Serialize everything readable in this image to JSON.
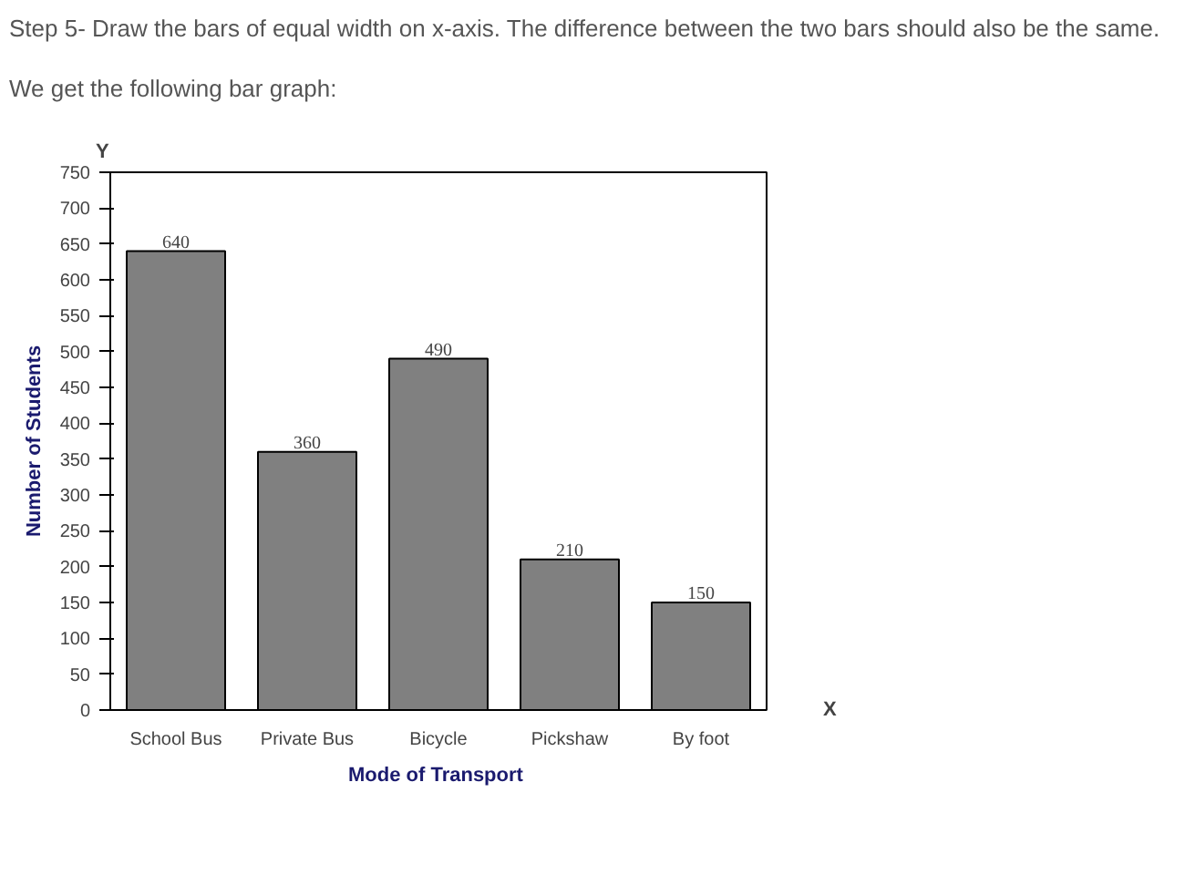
{
  "chart_data": {
    "type": "bar",
    "title": "Step 5- Draw the bars of equal width on x-axis. The difference between the two bars should also be the same.",
    "subtitle": "We get the following bar graph:",
    "xlabel": "Mode  of Transport",
    "ylabel": "Number of Students",
    "annotations": [
      "Y",
      "X"
    ],
    "categories": [
      "School Bus",
      "Private Bus",
      "Bicycle",
      "Pickshaw",
      "By foot"
    ],
    "values": [
      640,
      360,
      490,
      210,
      150
    ],
    "color": "#808080",
    "ylim": [
      0,
      750
    ],
    "yticks": [
      0,
      50,
      100,
      150,
      200,
      250,
      300,
      350,
      400,
      450,
      500,
      550,
      600,
      650,
      700,
      750
    ],
    "data_labels": true,
    "grid": false
  }
}
